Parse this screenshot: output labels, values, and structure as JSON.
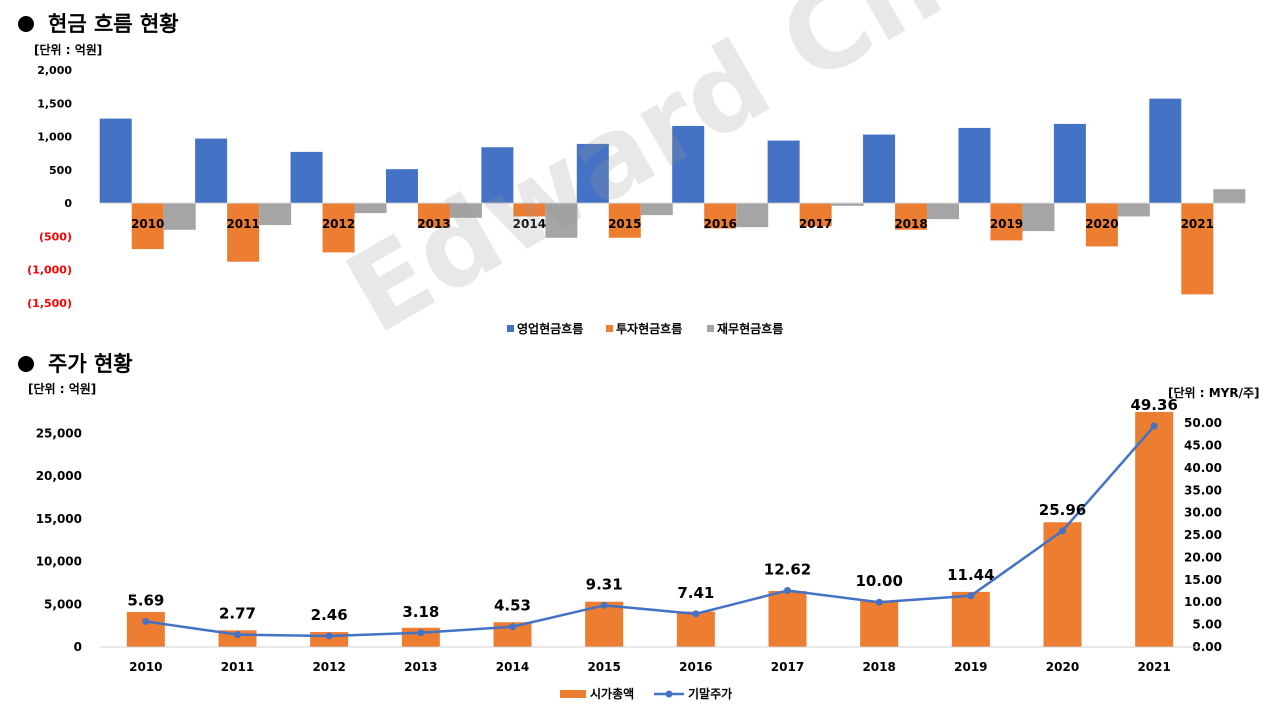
{
  "watermark": "Edward Choi",
  "section1": {
    "title": "현금 흐름 현황",
    "unit": "[단위 : 억원]"
  },
  "section2": {
    "title": "주가 현황",
    "unit_left": "[단위 : 억원]",
    "unit_right": "[단위 : MYR/주]"
  },
  "colors": {
    "blue": "#4472C4",
    "orange": "#ED7D31",
    "gray": "#A5A5A5",
    "negative": "#FF0000"
  },
  "chart_data": [
    {
      "type": "bar",
      "categories": [
        "2010",
        "2011",
        "2012",
        "2013",
        "2014",
        "2015",
        "2016",
        "2017",
        "2018",
        "2019",
        "2020",
        "2021"
      ],
      "series": [
        {
          "name": "영업현금흐름",
          "values": [
            1270,
            970,
            770,
            510,
            840,
            890,
            1160,
            940,
            1030,
            1130,
            1190,
            1570
          ]
        },
        {
          "name": "투자현금흐름",
          "values": [
            -690,
            -880,
            -740,
            -370,
            -200,
            -520,
            -380,
            -350,
            -400,
            -560,
            -650,
            -1370
          ]
        },
        {
          "name": "재무현금흐름",
          "values": [
            -400,
            -330,
            -150,
            -220,
            -520,
            -180,
            -360,
            -40,
            -240,
            -420,
            -200,
            210
          ]
        }
      ],
      "ylim": [
        -1500,
        2000
      ],
      "yticks": [
        "(1,500)",
        "(1,000)",
        "(500)",
        "0",
        "500",
        "1,000",
        "1,500",
        "2,000"
      ],
      "legend": "bottom"
    },
    {
      "type": "bar+line",
      "categories": [
        "2010",
        "2011",
        "2012",
        "2013",
        "2014",
        "2015",
        "2016",
        "2017",
        "2018",
        "2019",
        "2020",
        "2021"
      ],
      "series": [
        {
          "name": "시가총액",
          "axis": "left",
          "values": [
            4100,
            1950,
            1750,
            2250,
            2900,
            5300,
            4150,
            6550,
            5450,
            6450,
            14600,
            27500
          ]
        },
        {
          "name": "기말주가",
          "axis": "right",
          "values": [
            5.69,
            2.77,
            2.46,
            3.18,
            4.53,
            9.31,
            7.41,
            12.62,
            10.0,
            11.44,
            25.96,
            49.36
          ],
          "labels": [
            "5.69",
            "2.77",
            "2.46",
            "3.18",
            "4.53",
            "9.31",
            "7.41",
            "12.62",
            "10.00",
            "11.44",
            "25.96",
            "49.36"
          ]
        }
      ],
      "ylim_left": [
        0,
        27500
      ],
      "yticks_left": [
        "0",
        "5,000",
        "10,000",
        "15,000",
        "20,000",
        "25,000"
      ],
      "ylim_right": [
        0,
        52.5
      ],
      "yticks_right": [
        "0.00",
        "5.00",
        "10.00",
        "15.00",
        "20.00",
        "25.00",
        "30.00",
        "35.00",
        "40.00",
        "45.00",
        "50.00"
      ],
      "legend": "bottom"
    }
  ]
}
